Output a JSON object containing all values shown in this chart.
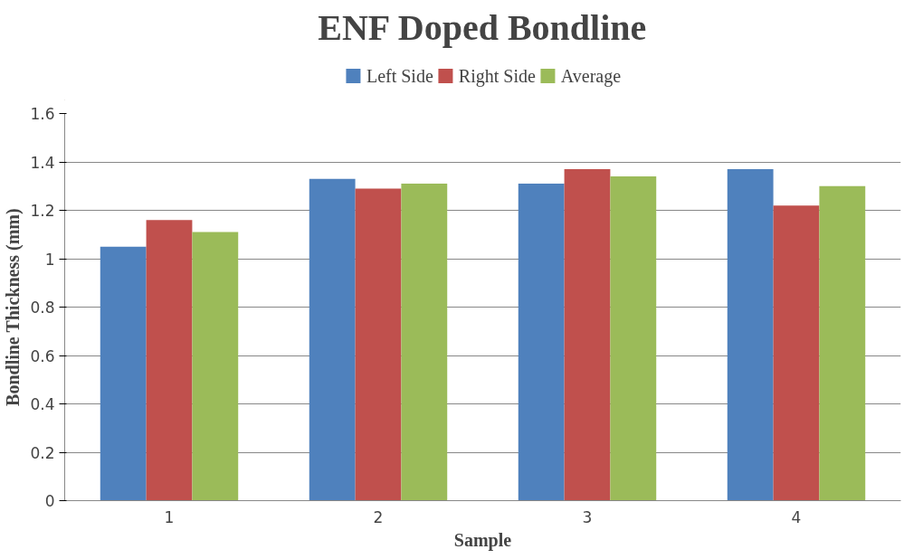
{
  "chart_data": {
    "type": "bar",
    "title": "ENF Doped Bondline",
    "xlabel": "Sample",
    "ylabel": "Bondline Thickness (mm)",
    "categories": [
      "1",
      "2",
      "3",
      "4"
    ],
    "series": [
      {
        "name": "Left Side",
        "color": "#4f81bd",
        "values": [
          1.05,
          1.33,
          1.31,
          1.37
        ]
      },
      {
        "name": "Right Side",
        "color": "#c0504d",
        "values": [
          1.16,
          1.29,
          1.37,
          1.22
        ]
      },
      {
        "name": "Average",
        "color": "#9bbb59",
        "values": [
          1.11,
          1.31,
          1.34,
          1.3
        ]
      }
    ],
    "ylim": [
      0,
      1.6
    ],
    "yticks": [
      0,
      0.2,
      0.4,
      0.6,
      0.8,
      1,
      1.2,
      1.4,
      1.6
    ],
    "grid": "y",
    "legend": "top"
  }
}
